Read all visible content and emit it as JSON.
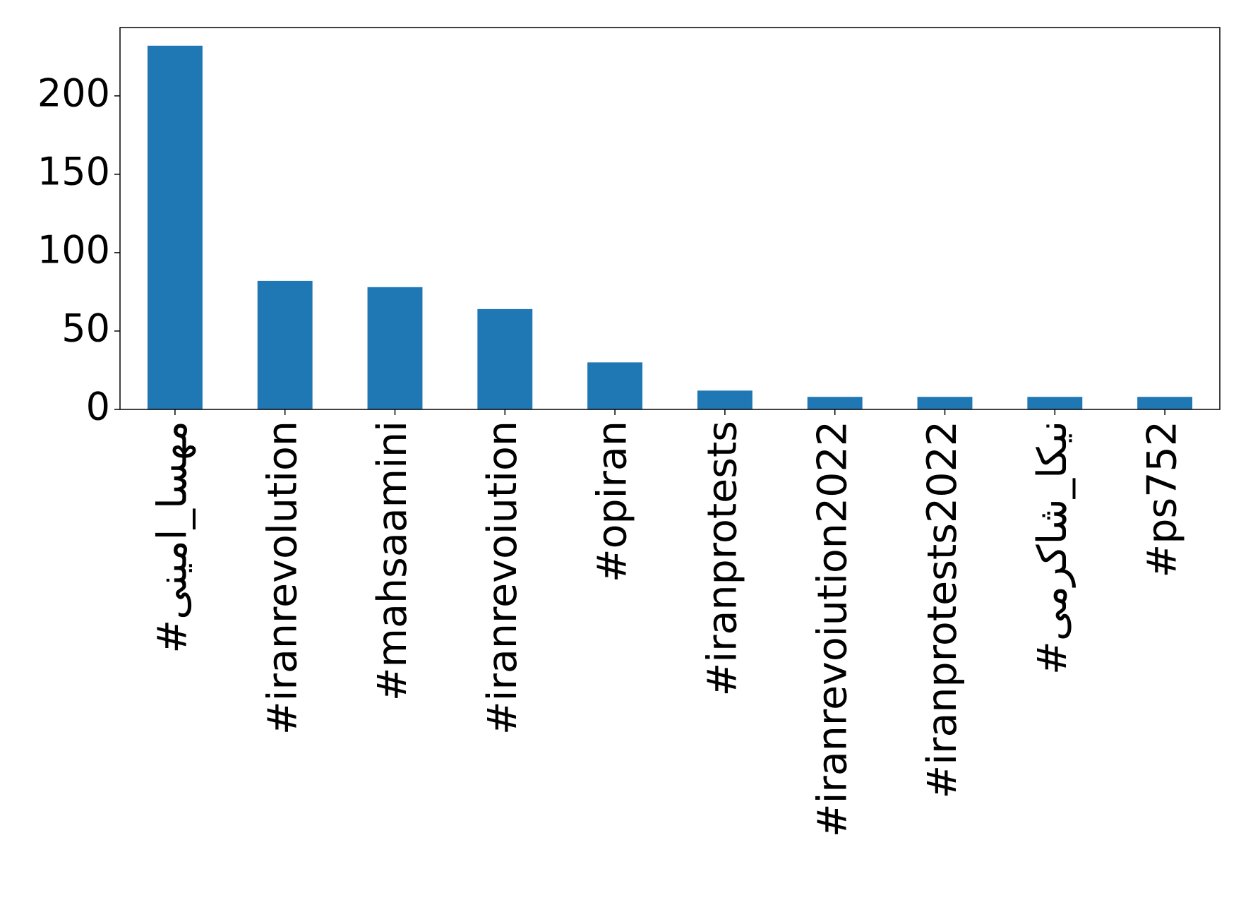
{
  "chart_data": {
    "type": "bar",
    "categories": [
      "#مهسا_امینی",
      "#iranrevolution",
      "#mahsaamini",
      "#iranrevoiution",
      "#opiran",
      "#iranprotests",
      "#iranrevoiution2022",
      "#iranprotests2022",
      "#نیکا_شاکرمی",
      "#ps752"
    ],
    "values": [
      232,
      82,
      78,
      64,
      30,
      12,
      8,
      8,
      8,
      8
    ],
    "color": "#1f77b4",
    "ylim": [
      0,
      243.6
    ],
    "yticks": [
      0,
      50,
      100,
      150,
      200
    ],
    "grid": false
  }
}
